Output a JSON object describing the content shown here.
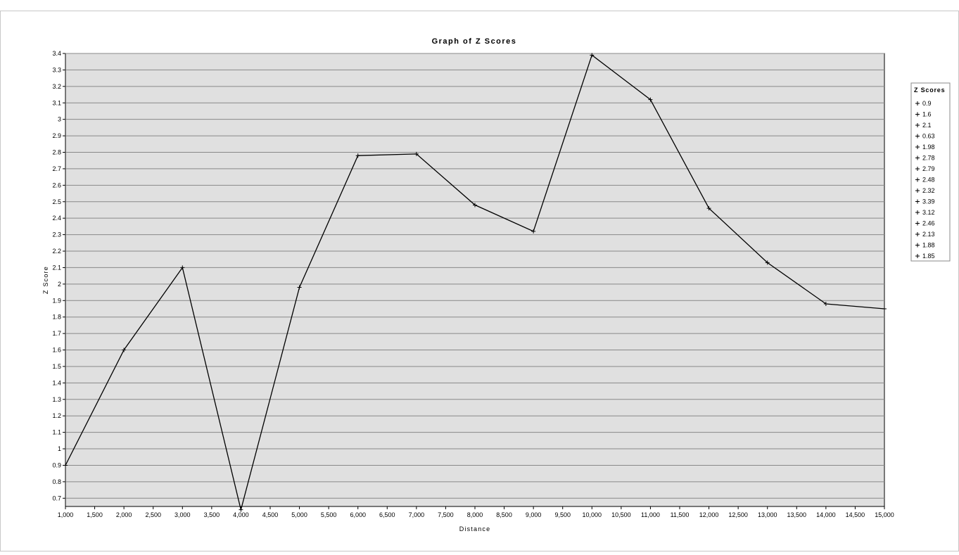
{
  "chart_data": {
    "type": "line",
    "title": "Graph of Z Scores",
    "xlabel": "Distance",
    "ylabel": "Z Score",
    "x": [
      1000,
      2000,
      3000,
      4000,
      5000,
      6000,
      7000,
      8000,
      9000,
      10000,
      11000,
      12000,
      13000,
      14000,
      15000
    ],
    "series": [
      {
        "values": [
          0.9,
          1.6,
          2.1,
          0.63,
          1.98,
          2.78,
          2.79,
          2.48,
          2.32,
          3.39,
          3.12,
          2.46,
          2.13,
          1.88,
          1.85
        ]
      }
    ],
    "xlim": [
      1000,
      15000
    ],
    "ylim": [
      0.65,
      3.4
    ],
    "x_tick_step": 500,
    "y_ticks": [
      0.7,
      0.8,
      0.9,
      1,
      1.1,
      1.2,
      1.3,
      1.4,
      1.5,
      1.6,
      1.7,
      1.8,
      1.9,
      2,
      2.1,
      2.2,
      2.3,
      2.4,
      2.5,
      2.6,
      2.7,
      2.8,
      2.9,
      3,
      3.1,
      3.2,
      3.3,
      3.4
    ],
    "x_tick_labels": [
      "1,000",
      "1,500",
      "2,000",
      "2,500",
      "3,000",
      "3,500",
      "4,000",
      "4,500",
      "5,000",
      "5,500",
      "6,000",
      "6,500",
      "7,000",
      "7,500",
      "8,000",
      "8,500",
      "9,000",
      "9,500",
      "10,000",
      "10,500",
      "11,000",
      "11,500",
      "12,000",
      "12,500",
      "13,000",
      "13,500",
      "14,000",
      "14,500",
      "15,000"
    ],
    "y_tick_labels": [
      "0.7",
      "0.8",
      "0.9",
      "1",
      "1.1",
      "1.2",
      "1.3",
      "1.4",
      "1.5",
      "1.6",
      "1.7",
      "1.8",
      "1.9",
      "2",
      "2.1",
      "2.2",
      "2.3",
      "2.4",
      "2.5",
      "2.6",
      "2.7",
      "2.8",
      "2.9",
      "3",
      "3.1",
      "3.2",
      "3.3",
      "3.4"
    ],
    "grid": "horizontal",
    "legend": {
      "title": "Z Scores",
      "position": "right",
      "entries": [
        "0.9",
        "1.6",
        "2.1",
        "0.63",
        "1.98",
        "2.78",
        "2.79",
        "2.48",
        "2.32",
        "3.39",
        "3.12",
        "2.46",
        "2.13",
        "1.88",
        "1.85"
      ]
    },
    "colors": {
      "plot_background": "#e0e0e0",
      "grid": "#888888",
      "line": "#000000"
    }
  }
}
